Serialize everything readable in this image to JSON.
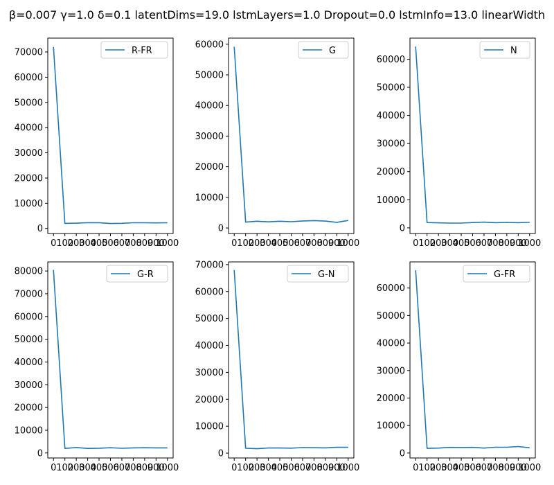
{
  "figure_title": "β=0.007 γ=1.0 δ=0.1 latentDims=19.0 lstmLayers=1.0 Dropout=0.0 lstmInfo=13.0 linearWidth",
  "colors": {
    "line": "#1f77b4",
    "axes": "#000000",
    "background": "#ffffff"
  },
  "chart_data": [
    {
      "type": "line",
      "title": "",
      "series": [
        {
          "name": "R-FR",
          "values": [
            72000,
            2000,
            2100,
            2300,
            2300,
            1950,
            2050,
            2250,
            2250,
            2200,
            2250
          ]
        }
      ],
      "x": [
        0,
        100,
        200,
        300,
        400,
        500,
        600,
        700,
        800,
        900,
        1000
      ],
      "xticklabels": [
        "0",
        "100",
        "200",
        "300",
        "400",
        "500",
        "600",
        "700",
        "800",
        "900",
        "1000"
      ],
      "ylim": [
        -2000,
        75500
      ],
      "yticks": [
        0,
        10000,
        20000,
        30000,
        40000,
        50000,
        60000,
        70000
      ],
      "legend": "top-right",
      "grid": false
    },
    {
      "type": "line",
      "title": "",
      "series": [
        {
          "name": "G",
          "values": [
            59200,
            1900,
            2200,
            2000,
            2200,
            2050,
            2300,
            2400,
            2250,
            1850,
            2450
          ]
        }
      ],
      "x": [
        0,
        100,
        200,
        300,
        400,
        500,
        600,
        700,
        800,
        900,
        1000
      ],
      "xticklabels": [
        "0",
        "100",
        "200",
        "300",
        "400",
        "500",
        "600",
        "700",
        "800",
        "900",
        "1000"
      ],
      "ylim": [
        -1800,
        62000
      ],
      "yticks": [
        0,
        10000,
        20000,
        30000,
        40000,
        50000,
        60000
      ],
      "legend": "top-right",
      "grid": false
    },
    {
      "type": "line",
      "title": "",
      "series": [
        {
          "name": "N",
          "values": [
            64500,
            1900,
            1800,
            1700,
            1700,
            1900,
            2050,
            1850,
            1950,
            1850,
            2000
          ]
        }
      ],
      "x": [
        0,
        100,
        200,
        300,
        400,
        500,
        600,
        700,
        800,
        900,
        1000
      ],
      "xticklabels": [
        "0",
        "100",
        "200",
        "300",
        "400",
        "500",
        "600",
        "700",
        "800",
        "900",
        "1000"
      ],
      "ylim": [
        -2000,
        67500
      ],
      "yticks": [
        0,
        10000,
        20000,
        30000,
        40000,
        50000,
        60000
      ],
      "legend": "top-right",
      "grid": false
    },
    {
      "type": "line",
      "title": "",
      "series": [
        {
          "name": "G-R",
          "values": [
            80500,
            2000,
            2400,
            2000,
            2100,
            2300,
            2050,
            2250,
            2300,
            2250,
            2250
          ]
        }
      ],
      "x": [
        0,
        100,
        200,
        300,
        400,
        500,
        600,
        700,
        800,
        900,
        1000
      ],
      "xticklabels": [
        "0",
        "100",
        "200",
        "300",
        "400",
        "500",
        "600",
        "700",
        "800",
        "900",
        "1000"
      ],
      "ylim": [
        -2200,
        84000
      ],
      "yticks": [
        0,
        10000,
        20000,
        30000,
        40000,
        50000,
        60000,
        70000,
        80000
      ],
      "legend": "top-right",
      "grid": false
    },
    {
      "type": "line",
      "title": "",
      "series": [
        {
          "name": "G-N",
          "values": [
            68000,
            1800,
            1650,
            1900,
            1900,
            1850,
            2050,
            2000,
            1950,
            2150,
            2150
          ]
        }
      ],
      "x": [
        0,
        100,
        200,
        300,
        400,
        500,
        600,
        700,
        800,
        900,
        1000
      ],
      "xticklabels": [
        "0",
        "100",
        "200",
        "300",
        "400",
        "500",
        "600",
        "700",
        "800",
        "900",
        "1000"
      ],
      "ylim": [
        -1800,
        71000
      ],
      "yticks": [
        0,
        10000,
        20000,
        30000,
        40000,
        50000,
        60000,
        70000
      ],
      "legend": "top-right",
      "grid": false
    },
    {
      "type": "line",
      "title": "",
      "series": [
        {
          "name": "G-FR",
          "values": [
            66500,
            1700,
            1800,
            2050,
            2000,
            2050,
            1800,
            2100,
            2100,
            2350,
            1900
          ]
        }
      ],
      "x": [
        0,
        100,
        200,
        300,
        400,
        500,
        600,
        700,
        800,
        900,
        1000
      ],
      "xticklabels": [
        "0",
        "100",
        "200",
        "300",
        "400",
        "500",
        "600",
        "700",
        "800",
        "900",
        "1000"
      ],
      "ylim": [
        -1800,
        69500
      ],
      "yticks": [
        0,
        10000,
        20000,
        30000,
        40000,
        50000,
        60000
      ],
      "legend": "top-right",
      "grid": false
    }
  ]
}
